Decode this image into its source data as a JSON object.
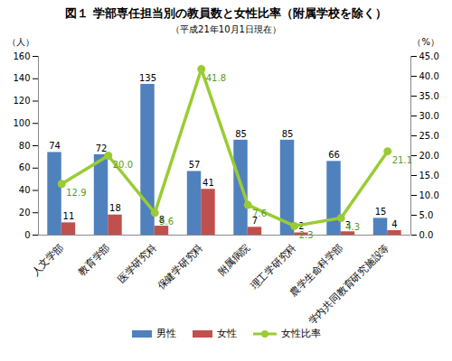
{
  "chart_data": {
    "type": "bar",
    "title": "図１ 学部専任担当別の教員数と女性比率（附属学校を除く）",
    "subtitle": "（平成21年10月1日現在）",
    "y_label": "（人）",
    "y2_label": "（%）",
    "categories": [
      "人文学部",
      "教育学部",
      "医学研究科",
      "保健学研究科",
      "附属病院",
      "理工学研究科",
      "農学生命科学部",
      "学内共同教育研究施設等"
    ],
    "series": [
      {
        "name": "男性",
        "color": "#4f81bd",
        "values": [
          74,
          72,
          135,
          57,
          85,
          85,
          66,
          15
        ]
      },
      {
        "name": "女性",
        "color": "#c0504d",
        "values": [
          11,
          18,
          8,
          41,
          7,
          2,
          3,
          4
        ]
      },
      {
        "name": "女性比率",
        "type": "line",
        "axis": "y2",
        "color": "#99cc33",
        "marker": "circle",
        "values": [
          12.9,
          20.0,
          5.6,
          41.8,
          7.6,
          2.3,
          4.3,
          21.1
        ],
        "value_labels": [
          "12.9",
          "20.0",
          "5.6",
          "41.8",
          "7.6",
          "2.3",
          "4.3",
          "21.1"
        ]
      }
    ],
    "ylim": [
      0,
      160
    ],
    "yticks": [
      0,
      20,
      40,
      60,
      80,
      100,
      120,
      140,
      160
    ],
    "y2lim": [
      0,
      45
    ],
    "y2ticks": [
      {
        "value": 0,
        "label": "0.0"
      },
      {
        "value": 5,
        "label": "5.0"
      },
      {
        "value": 10,
        "label": "10.0"
      },
      {
        "value": 15,
        "label": "15.0"
      },
      {
        "value": 20,
        "label": "20.0"
      },
      {
        "value": 25,
        "label": "25.0"
      },
      {
        "value": 30,
        "label": "30.0"
      },
      {
        "value": 35,
        "label": "35.0"
      },
      {
        "value": 40,
        "label": "40.0"
      },
      {
        "value": 45,
        "label": "45.0"
      }
    ],
    "data_labels": true,
    "grid": false,
    "legend": "bottom"
  }
}
